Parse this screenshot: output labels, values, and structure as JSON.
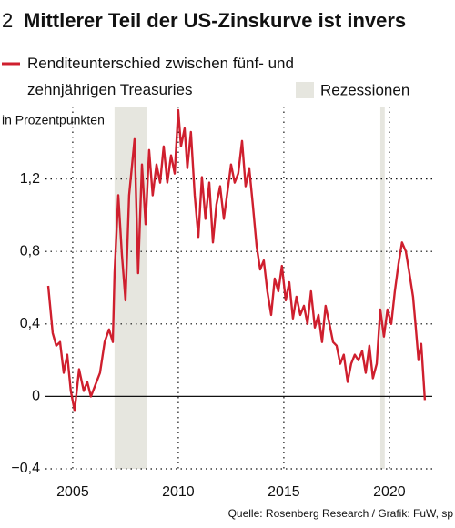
{
  "chart_data": {
    "type": "line",
    "chart_number": "2",
    "title": "Mittlerer Teil der US-Zinskurve ist invers",
    "y_axis_label": "in Prozentpunkten",
    "source": "Quelle: Rosenberg Research / Grafik: FuW, sp",
    "x": [
      2003.84,
      2004.05,
      2004.22,
      2004.4,
      2004.57,
      2004.74,
      2004.91,
      2005.09,
      2005.3,
      2005.52,
      2005.69,
      2005.86,
      2006.03,
      2006.29,
      2006.51,
      2006.72,
      2006.9,
      2006.98,
      2007.16,
      2007.33,
      2007.5,
      2007.67,
      2007.93,
      2008.1,
      2008.28,
      2008.45,
      2008.62,
      2008.79,
      2008.97,
      2009.14,
      2009.31,
      2009.48,
      2009.66,
      2009.83,
      2010.0,
      2010.13,
      2010.3,
      2010.43,
      2010.6,
      2010.78,
      2010.95,
      2011.12,
      2011.29,
      2011.47,
      2011.64,
      2011.81,
      2011.98,
      2012.16,
      2012.33,
      2012.5,
      2012.67,
      2012.84,
      2013.02,
      2013.19,
      2013.36,
      2013.53,
      2013.71,
      2013.88,
      2014.05,
      2014.22,
      2014.4,
      2014.57,
      2014.74,
      2014.91,
      2015.09,
      2015.26,
      2015.43,
      2015.6,
      2015.78,
      2015.95,
      2016.12,
      2016.29,
      2016.47,
      2016.64,
      2016.81,
      2016.98,
      2017.16,
      2017.33,
      2017.5,
      2017.67,
      2017.84,
      2018.02,
      2018.19,
      2018.36,
      2018.53,
      2018.71,
      2018.88,
      2019.05,
      2019.22,
      2019.4,
      2019.57,
      2019.74,
      2019.91,
      2020.09,
      2020.26,
      2020.43,
      2020.6,
      2020.78,
      2020.95,
      2021.12,
      2021.25,
      2021.38,
      2021.51,
      2021.68
    ],
    "series": [
      {
        "name": "Renditeunterschied zwischen fünf- und zehnjährigen Treasuries",
        "color": "#cf1f2e",
        "values": [
          0.61,
          0.35,
          0.28,
          0.3,
          0.13,
          0.23,
          0.03,
          -0.08,
          0.15,
          0.03,
          0.08,
          0,
          0.05,
          0.13,
          0.3,
          0.37,
          0.3,
          0.68,
          1.11,
          0.78,
          0.53,
          1.11,
          1.42,
          0.68,
          1.28,
          0.95,
          1.36,
          1.11,
          1.28,
          1.18,
          1.38,
          1.18,
          1.33,
          1.23,
          1.58,
          1.38,
          1.48,
          1.26,
          1.46,
          1.11,
          0.88,
          1.21,
          0.98,
          1.18,
          0.85,
          1.06,
          1.16,
          0.98,
          1.13,
          1.28,
          1.18,
          1.23,
          1.41,
          1.16,
          1.26,
          1.06,
          0.83,
          0.7,
          0.75,
          0.58,
          0.45,
          0.65,
          0.58,
          0.72,
          0.53,
          0.63,
          0.43,
          0.55,
          0.45,
          0.5,
          0.4,
          0.58,
          0.38,
          0.45,
          0.3,
          0.5,
          0.4,
          0.3,
          0.28,
          0.18,
          0.23,
          0.08,
          0.18,
          0.23,
          0.2,
          0.25,
          0.13,
          0.28,
          0.1,
          0.18,
          0.48,
          0.33,
          0.48,
          0.4,
          0.58,
          0.73,
          0.85,
          0.8,
          0.68,
          0.55,
          0.38,
          0.2,
          0.29,
          -0.02
        ]
      }
    ],
    "recessions": [
      [
        2006.98,
        2008.53
      ],
      [
        2019.57,
        2019.78
      ]
    ],
    "recession_label": "Rezessionen",
    "recession_color": "#e6e6df",
    "xlim": [
      2003.71,
      2022.03
    ],
    "xticks": [
      2005,
      2010,
      2015,
      2020
    ],
    "ylim": [
      -0.4,
      1.6
    ],
    "yticks": [
      {
        "value": -0.4,
        "label": "−0,4"
      },
      0,
      {
        "value": 0.4,
        "label": "0,4"
      },
      {
        "value": 0.8,
        "label": "0,8"
      },
      {
        "value": 1.2,
        "label": "1,2"
      }
    ],
    "grid": true
  }
}
